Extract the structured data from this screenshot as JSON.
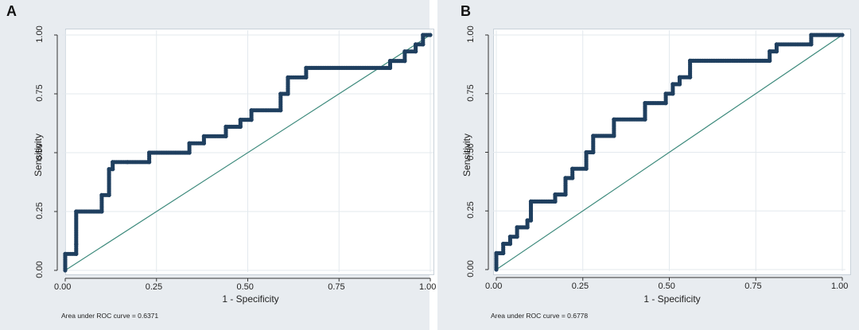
{
  "chart_data": [
    {
      "panel": "A",
      "type": "line",
      "xlabel": "1 - Specificity",
      "ylabel": "Sensitivity",
      "xlim": [
        0,
        1
      ],
      "ylim": [
        0,
        1
      ],
      "xticks": [
        "0.00",
        "0.25",
        "0.50",
        "0.75",
        "1.00"
      ],
      "yticks": [
        "0.00",
        "0.25",
        "0.50",
        "0.75",
        "1.00"
      ],
      "grid": true,
      "annotation": "Area under ROC curve = 0.6371",
      "reference_line": [
        [
          0,
          0
        ],
        [
          1,
          1
        ]
      ],
      "series": [
        {
          "x": [
            0.0,
            0.0,
            0.03,
            0.03,
            0.03,
            0.1,
            0.1,
            0.12,
            0.12,
            0.13,
            0.13,
            0.17,
            0.23,
            0.23,
            0.34,
            0.34,
            0.38,
            0.38,
            0.44,
            0.44,
            0.48,
            0.48,
            0.51,
            0.51,
            0.59,
            0.59,
            0.61,
            0.61,
            0.66,
            0.66,
            0.89,
            0.89,
            0.93,
            0.93,
            0.96,
            0.96,
            0.98,
            0.98,
            1.0
          ],
          "y": [
            0.0,
            0.07,
            0.07,
            0.11,
            0.25,
            0.25,
            0.32,
            0.32,
            0.43,
            0.43,
            0.46,
            0.46,
            0.46,
            0.5,
            0.5,
            0.54,
            0.54,
            0.57,
            0.57,
            0.61,
            0.61,
            0.64,
            0.64,
            0.68,
            0.68,
            0.75,
            0.75,
            0.82,
            0.82,
            0.86,
            0.86,
            0.89,
            0.89,
            0.93,
            0.93,
            0.96,
            0.96,
            1.0,
            1.0
          ]
        }
      ]
    },
    {
      "panel": "B",
      "type": "line",
      "xlabel": "1 - Specificity",
      "ylabel": "Sensitivity",
      "xlim": [
        0,
        1
      ],
      "ylim": [
        0,
        1
      ],
      "xticks": [
        "0.00",
        "0.25",
        "0.50",
        "0.75",
        "1.00"
      ],
      "yticks": [
        "0.00",
        "0.25",
        "0.50",
        "0.75",
        "1.00"
      ],
      "grid": true,
      "annotation": "Area under ROC curve = 0.6778",
      "reference_line": [
        [
          0,
          0
        ],
        [
          1,
          1
        ]
      ],
      "series": [
        {
          "x": [
            0.0,
            0.0,
            0.02,
            0.02,
            0.04,
            0.04,
            0.06,
            0.06,
            0.09,
            0.09,
            0.1,
            0.1,
            0.17,
            0.17,
            0.2,
            0.2,
            0.22,
            0.22,
            0.26,
            0.26,
            0.28,
            0.28,
            0.34,
            0.34,
            0.43,
            0.43,
            0.49,
            0.49,
            0.51,
            0.51,
            0.53,
            0.53,
            0.56,
            0.56,
            0.79,
            0.79,
            0.81,
            0.81,
            0.91,
            0.91,
            1.0
          ],
          "y": [
            0.0,
            0.07,
            0.07,
            0.11,
            0.11,
            0.14,
            0.14,
            0.18,
            0.18,
            0.21,
            0.21,
            0.29,
            0.29,
            0.32,
            0.32,
            0.39,
            0.39,
            0.43,
            0.43,
            0.5,
            0.5,
            0.57,
            0.57,
            0.64,
            0.64,
            0.71,
            0.71,
            0.75,
            0.75,
            0.79,
            0.79,
            0.82,
            0.82,
            0.89,
            0.89,
            0.93,
            0.93,
            0.96,
            0.96,
            1.0,
            1.0
          ]
        }
      ]
    }
  ]
}
